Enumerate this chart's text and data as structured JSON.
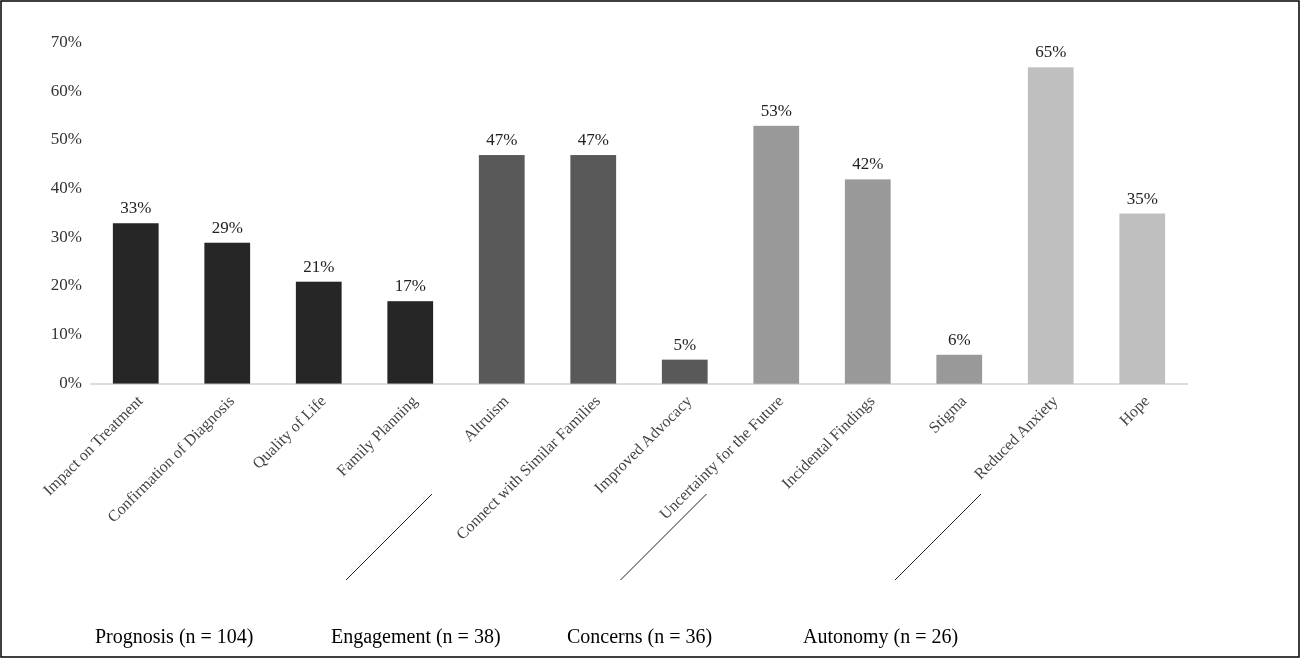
{
  "chart_data": {
    "type": "bar",
    "categories": [
      "Impact on Treatment",
      "Confirmation of Diagnosis",
      "Quality of Life",
      "Family Planning",
      "Altruism",
      "Connect with Similar Families",
      "Improved Advocacy",
      "Uncertainty for the Future",
      "Incidental Findings",
      "Stigma",
      "Reduced Anxiety",
      "Hope"
    ],
    "values": [
      33,
      29,
      21,
      17,
      47,
      47,
      5,
      53,
      42,
      6,
      65,
      35
    ],
    "colors": [
      "#262626",
      "#262626",
      "#262626",
      "#262626",
      "#595959",
      "#595959",
      "#595959",
      "#999999",
      "#999999",
      "#999999",
      "#bfbfbf",
      "#bfbfbf"
    ],
    "value_labels": [
      "33%",
      "29%",
      "21%",
      "17%",
      "47%",
      "47%",
      "5%",
      "53%",
      "42%",
      "6%",
      "65%",
      "35%"
    ],
    "ylim": [
      0,
      70
    ],
    "yticks": [
      {
        "value": 0,
        "label": "0%"
      },
      {
        "value": 10,
        "label": "10%"
      },
      {
        "value": 20,
        "label": "20%"
      },
      {
        "value": 30,
        "label": "30%"
      },
      {
        "value": 40,
        "label": "40%"
      },
      {
        "value": 50,
        "label": "50%"
      },
      {
        "value": 60,
        "label": "60%"
      },
      {
        "value": 70,
        "label": "70%"
      }
    ],
    "grid": false,
    "annotations": [
      "Prognosis (n = 104)",
      "Engagement (n = 38)",
      "Concerns (n = 36)",
      "Autonomy (n = 26)"
    ]
  }
}
